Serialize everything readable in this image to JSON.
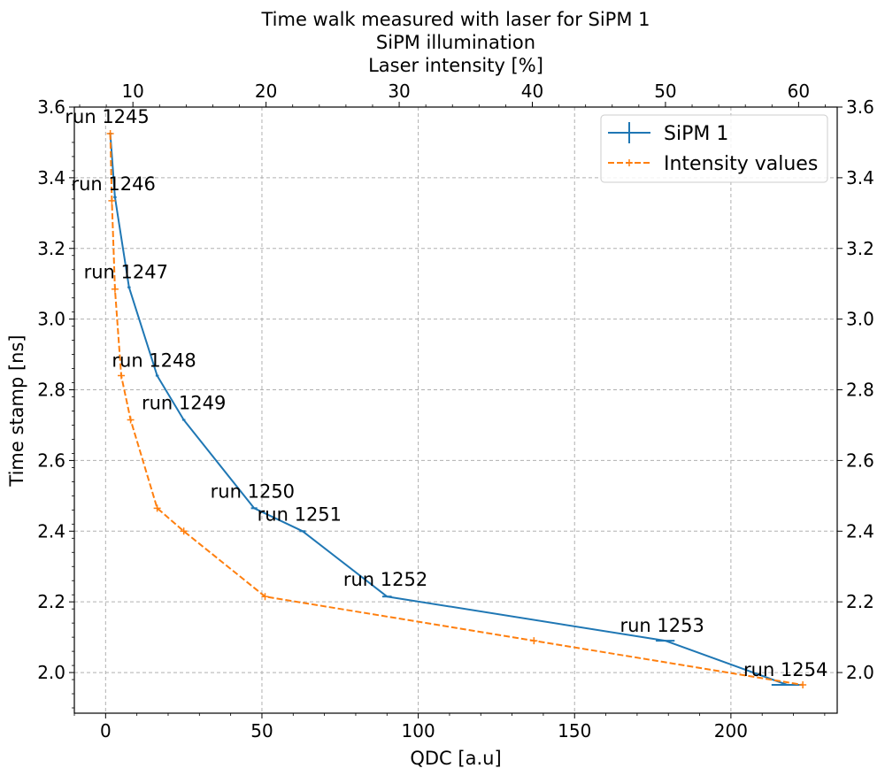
{
  "chart_data": {
    "type": "line",
    "title_lines": [
      "Time walk measured with laser for SiPM 1",
      "SiPM illumination",
      "Laser intensity [%]"
    ],
    "xlabel": "QDC [a.u]",
    "ylabel": "Time stamp [ns]",
    "xlim": [
      -10,
      234
    ],
    "ylim": [
      1.885,
      3.6
    ],
    "top_xlim": [
      5.6,
      62.9
    ],
    "x_ticks": [
      "0",
      "50",
      "100",
      "150",
      "200"
    ],
    "y_ticks": [
      "2.0",
      "2.2",
      "2.4",
      "2.6",
      "2.8",
      "3.0",
      "3.2",
      "3.4",
      "3.6"
    ],
    "top_ticks": [
      "10",
      "20",
      "30",
      "40",
      "50",
      "60"
    ],
    "grid": true,
    "legend_position": "top-right",
    "series": [
      {
        "name": "SiPM 1",
        "color": "#1f77b4",
        "style": "solid-errorbar",
        "x": [
          1.5,
          3.0,
          7.5,
          16.5,
          25.0,
          47.5,
          63.0,
          90.0,
          179.0,
          218.0
        ],
        "y": [
          3.525,
          3.345,
          3.09,
          2.84,
          2.715,
          2.465,
          2.4,
          2.215,
          2.09,
          1.965
        ],
        "xerr": [
          0.5,
          0.5,
          0.5,
          0.5,
          0.5,
          1.0,
          1.0,
          1.5,
          3.0,
          5.0
        ]
      },
      {
        "name": "Intensity values",
        "color": "#ff7f0e",
        "style": "dashed-plus",
        "x": [
          1.5,
          2.0,
          3.0,
          5.0,
          8.0,
          16.5,
          25.0,
          51.0,
          137.0,
          223.0
        ],
        "y": [
          3.525,
          3.335,
          3.085,
          2.84,
          2.715,
          2.465,
          2.4,
          2.215,
          2.09,
          1.965
        ]
      }
    ],
    "annotations": [
      {
        "text": "run 1245",
        "x": -13.0,
        "y": 3.555
      },
      {
        "text": "run 1246",
        "x": -11.0,
        "y": 3.365
      },
      {
        "text": "run 1247",
        "x": -7.0,
        "y": 3.115
      },
      {
        "text": "run 1248",
        "x": 2.0,
        "y": 2.865
      },
      {
        "text": "run 1249",
        "x": 11.5,
        "y": 2.745
      },
      {
        "text": "run 1250",
        "x": 33.5,
        "y": 2.495
      },
      {
        "text": "run 1251",
        "x": 48.5,
        "y": 2.43
      },
      {
        "text": "run 1252",
        "x": 76.0,
        "y": 2.245
      },
      {
        "text": "run 1253",
        "x": 164.5,
        "y": 2.115
      },
      {
        "text": "run 1254",
        "x": 204.0,
        "y": 1.99
      }
    ]
  }
}
